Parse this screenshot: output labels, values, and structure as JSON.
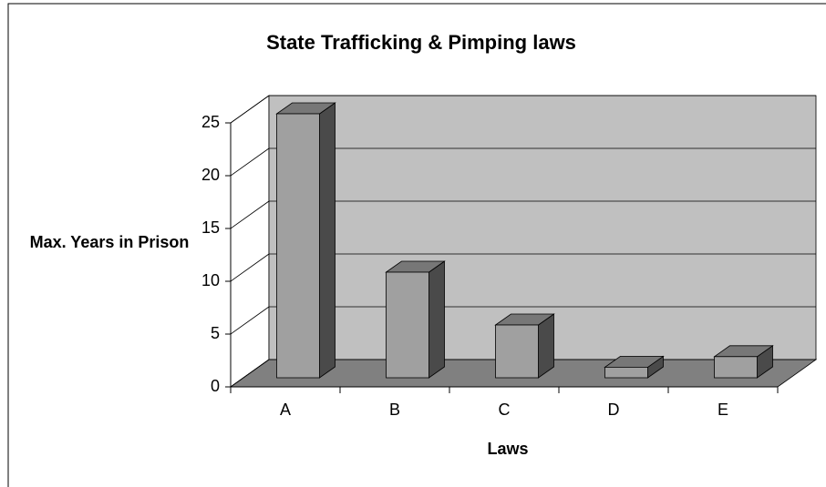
{
  "chart_data": {
    "type": "bar3d",
    "title": "State Trafficking & Pimping laws",
    "x_label": "Laws",
    "y_label": "Max. Years in Prison",
    "categories": [
      "A",
      "B",
      "C",
      "D",
      "E"
    ],
    "values": [
      25,
      10,
      5,
      1,
      2
    ],
    "color": "#a0a0a0",
    "ylim": [
      0,
      25
    ],
    "yticks": [
      0,
      5,
      10,
      15,
      20,
      25
    ],
    "grid": true
  }
}
